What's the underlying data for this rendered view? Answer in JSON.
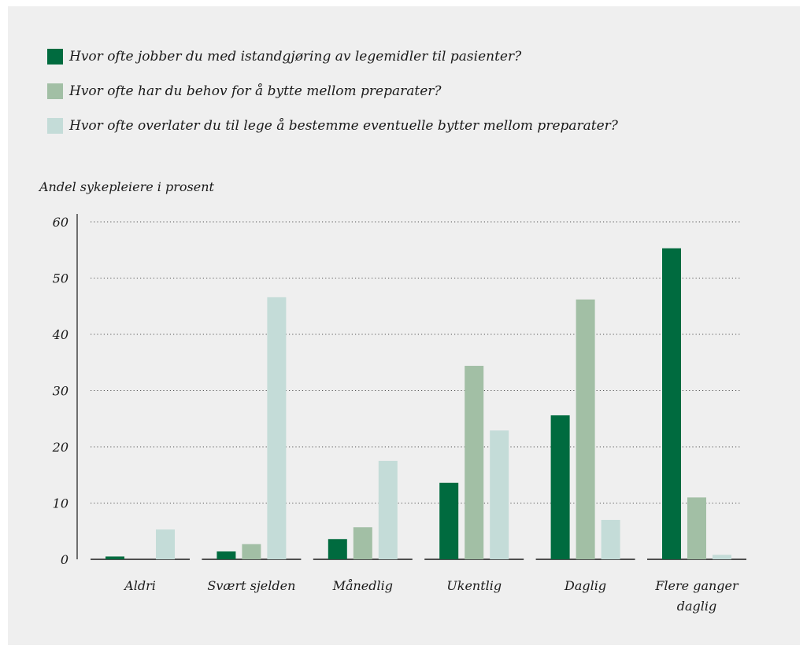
{
  "legend": [
    {
      "label": "Hvor ofte jobber du med istandgjøring av legemidler til pasienter?",
      "color": "#006b3f"
    },
    {
      "label": "Hvor ofte har du behov for å bytte mellom preparater?",
      "color": "#a2bfa5"
    },
    {
      "label": "Hvor ofte overlater du til lege å bestemme eventuelle bytter mellom preparater?",
      "color": "#c4dcd8"
    }
  ],
  "chart_data": {
    "type": "bar",
    "ylabel": "Andel sykepleiere i prosent",
    "ylim": [
      0,
      60
    ],
    "yticks": [
      0,
      10,
      20,
      30,
      40,
      50,
      60
    ],
    "grid": true,
    "legend_position": "top-left",
    "categories": [
      [
        "Aldri"
      ],
      [
        "Svært sjelden"
      ],
      [
        "Månedlig"
      ],
      [
        "Ukentlig"
      ],
      [
        "Daglig"
      ],
      [
        "Flere ganger",
        "daglig"
      ]
    ],
    "series": [
      {
        "name": "Hvor ofte jobber du med istandgjøring av legemidler til pasienter?",
        "color": "#006b3f",
        "values": [
          0.5,
          1.4,
          3.6,
          13.6,
          25.6,
          55.3
        ]
      },
      {
        "name": "Hvor ofte har du behov for å bytte mellom preparater?",
        "color": "#a2bfa5",
        "values": [
          0,
          2.7,
          5.7,
          34.4,
          46.2,
          11.0
        ]
      },
      {
        "name": "Hvor ofte overlater du til lege å bestemme eventuelle bytter mellom preparater?",
        "color": "#c4dcd8",
        "values": [
          5.3,
          46.6,
          17.5,
          22.9,
          7.0,
          0.8
        ]
      }
    ]
  }
}
